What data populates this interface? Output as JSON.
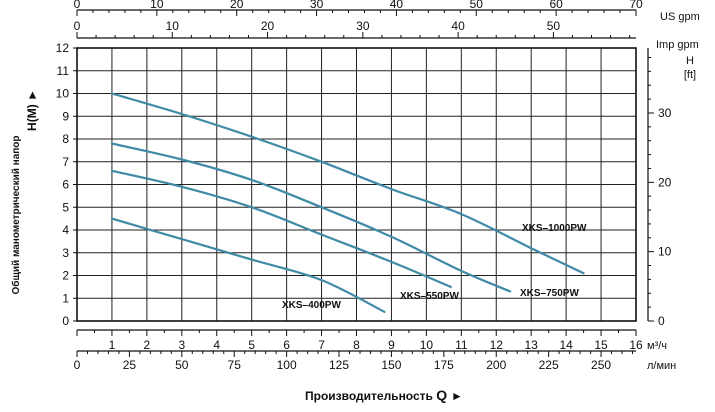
{
  "chart_data": {
    "type": "line",
    "title": "",
    "ylabel_left": "Общий манометрический напор",
    "ylabel_left_unit": "H(M)",
    "ylabel_left_arrow": "►",
    "ylabel_right": "H",
    "ylabel_right_unit": "[ft]",
    "xlabel": "Производительность",
    "xlabel_symbol": "Q",
    "xlabel_arrow": "►",
    "axes": {
      "x_m3h": {
        "range": [
          0,
          16
        ],
        "ticks": [
          "1",
          "2",
          "3",
          "4",
          "5",
          "6",
          "7",
          "8",
          "9",
          "10",
          "11",
          "12",
          "13",
          "14",
          "15",
          "16"
        ],
        "unit": "м³/ч"
      },
      "x_lmin": {
        "range": [
          0,
          266.67
        ],
        "ticks": [
          "0",
          "25",
          "50",
          "75",
          "100",
          "125",
          "150",
          "175",
          "200",
          "225",
          "250"
        ],
        "unit": "л/мин"
      },
      "x_usgpm": {
        "range": [
          0,
          70
        ],
        "ticks": [
          "0",
          "10",
          "20",
          "30",
          "40",
          "50",
          "60",
          "70"
        ],
        "unit": "US gpm"
      },
      "x_impgpm": {
        "range": [
          0,
          58.67
        ],
        "ticks": [
          "0",
          "10",
          "20",
          "30",
          "40",
          "50"
        ],
        "unit": "Imp gpm"
      },
      "y_m": {
        "range": [
          0,
          12
        ],
        "ticks": [
          "0",
          "1",
          "2",
          "3",
          "4",
          "5",
          "6",
          "7",
          "8",
          "9",
          "10",
          "11",
          "12"
        ]
      },
      "y_ft": {
        "range": [
          0,
          39.37
        ],
        "ticks": [
          "0",
          "10",
          "20",
          "30"
        ]
      }
    },
    "grid": true,
    "series": [
      {
        "name": "XKS–1000PW",
        "x": [
          1,
          3,
          5,
          7,
          9,
          11,
          13,
          14.5
        ],
        "y": [
          10,
          9.1,
          8.1,
          7.0,
          5.8,
          4.7,
          3.2,
          2.1
        ]
      },
      {
        "name": "XKS–750PW",
        "x": [
          1,
          3,
          5,
          7,
          9,
          11,
          12.4
        ],
        "y": [
          7.8,
          7.1,
          6.2,
          5.0,
          3.7,
          2.2,
          1.3
        ]
      },
      {
        "name": "XKS–550PW",
        "x": [
          1,
          3,
          5,
          7,
          9,
          10.7
        ],
        "y": [
          6.6,
          5.9,
          5.0,
          3.8,
          2.6,
          1.5
        ]
      },
      {
        "name": "XKS–400PW",
        "x": [
          1,
          3,
          5,
          7,
          8.8
        ],
        "y": [
          4.5,
          3.6,
          2.7,
          1.8,
          0.4
        ]
      }
    ],
    "series_color": "#3f8aa6"
  }
}
